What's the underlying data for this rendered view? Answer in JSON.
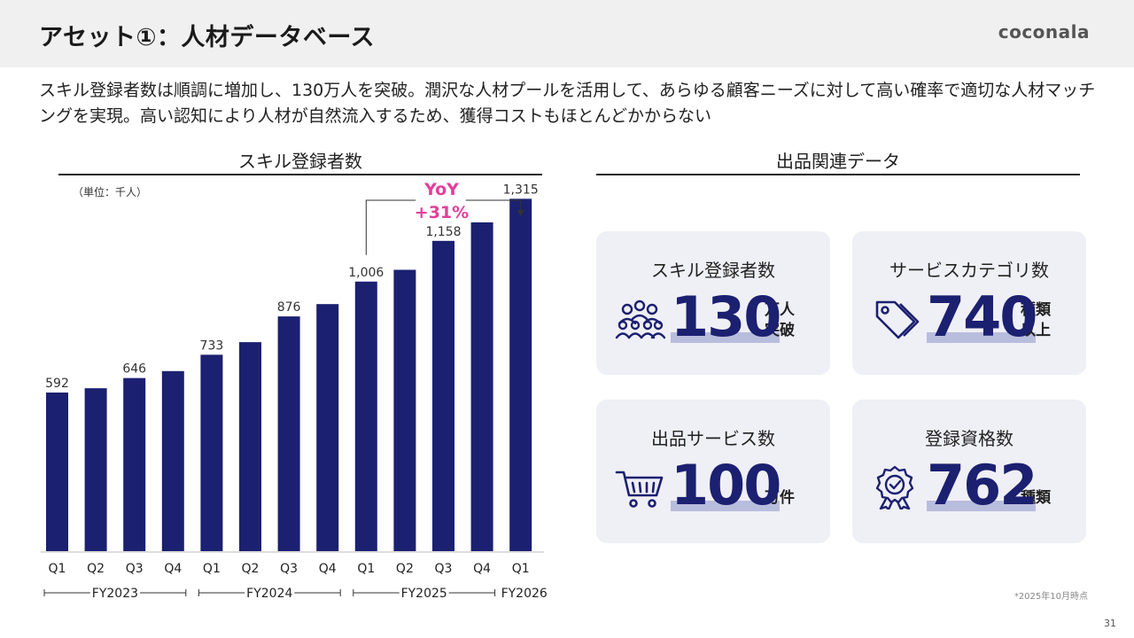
{
  "header": {
    "title": "アセット①：人材データベース",
    "logo": "coconala"
  },
  "lead": "スキル登録者数は順調に増加し、130万人を突破。潤沢な人材プールを活用して、あらゆる顧客ニーズに対して高い確率で適切な人材マッチングを実現。高い認知により人材が自然流入するため、獲得コストもほとんどかからない",
  "left_section": {
    "title": "スキル登録者数",
    "unit": "（単位：千人）"
  },
  "right_section": {
    "title": "出品関連データ"
  },
  "chart_data": {
    "type": "bar",
    "title": "スキル登録者数",
    "categories": [
      "Q1",
      "Q2",
      "Q3",
      "Q4",
      "Q1",
      "Q2",
      "Q3",
      "Q4",
      "Q1",
      "Q2",
      "Q3",
      "Q4",
      "Q1"
    ],
    "values": [
      592,
      608,
      646,
      672,
      733,
      780,
      876,
      922,
      1006,
      1050,
      1158,
      1227,
      1315
    ],
    "data_labels": [
      "592",
      null,
      "646",
      null,
      "733",
      null,
      "876",
      null,
      "1,006",
      null,
      "1,158",
      null,
      "1,315"
    ],
    "fiscal_years": [
      {
        "label": "FY2023",
        "from": 0,
        "to": 3
      },
      {
        "label": "FY2024",
        "from": 4,
        "to": 7
      },
      {
        "label": "FY2025",
        "from": 8,
        "to": 11
      },
      {
        "label": "FY2026",
        "from": 12,
        "to": 12
      }
    ],
    "annotation": {
      "line1": "YoY",
      "line2": "+31%",
      "from_index": 8,
      "to_index": 12
    },
    "ylim": [
      0,
      1400
    ],
    "bar_color": "#1b2070",
    "annotation_color": "#e0409a"
  },
  "cards": [
    {
      "title": "スキル登録者数",
      "value": "130",
      "suffix_line1": "万人",
      "suffix_line2": "突破",
      "icon": "people-group-icon"
    },
    {
      "title": "サービスカテゴリ数",
      "value": "740",
      "suffix_line1": "種類",
      "suffix_line2": "以上",
      "icon": "tag-icon"
    },
    {
      "title": "出品サービス数",
      "value": "100",
      "suffix_line1": "万件",
      "suffix_line2": "",
      "icon": "shopping-cart-icon"
    },
    {
      "title": "登録資格数",
      "value": "762",
      "suffix_line1": "種類",
      "suffix_line2": "",
      "icon": "certificate-badge-icon"
    }
  ],
  "note": "*2025年10月時点",
  "page_number": "31",
  "colors": {
    "navy": "#1b2070",
    "pink": "#e0409a",
    "card_bg": "#efeff6",
    "highlight": "#b9bddd"
  }
}
